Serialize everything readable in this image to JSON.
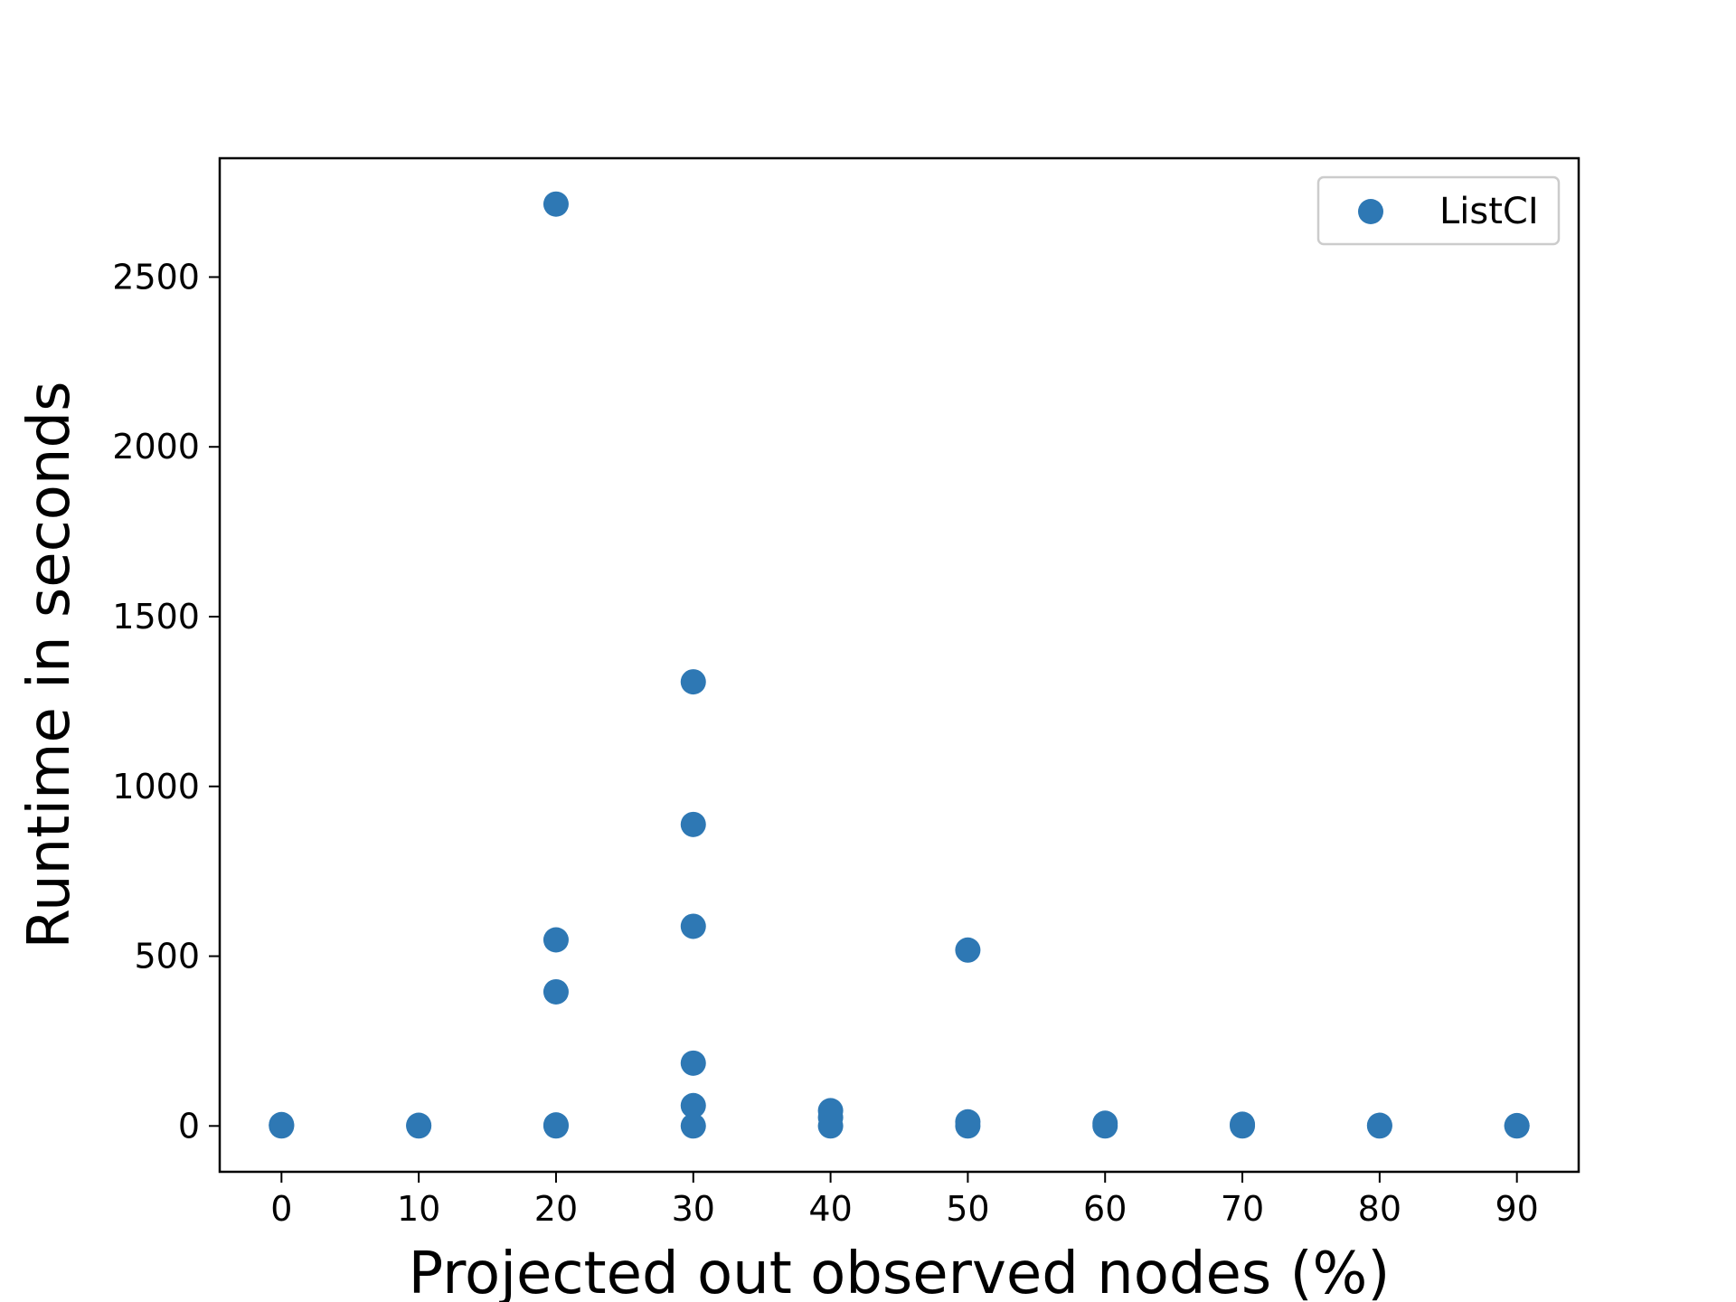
{
  "chart_data": {
    "type": "scatter",
    "title": "",
    "xlabel": "Projected out observed nodes (%)",
    "ylabel": "Runtime in seconds",
    "xlim": [
      -4.5,
      94.5
    ],
    "ylim": [
      -135,
      2850
    ],
    "xticks": [
      0,
      10,
      20,
      30,
      40,
      50,
      60,
      70,
      80,
      90
    ],
    "yticks": [
      0,
      500,
      1000,
      1500,
      2000,
      2500
    ],
    "grid": false,
    "legend_position": "top-right",
    "series": [
      {
        "name": "ListCI",
        "color": "#2e78b4",
        "points": [
          {
            "x": 0,
            "y": 0
          },
          {
            "x": 0,
            "y": 2
          },
          {
            "x": 0,
            "y": 4
          },
          {
            "x": 10,
            "y": 0
          },
          {
            "x": 10,
            "y": 2
          },
          {
            "x": 20,
            "y": 2715
          },
          {
            "x": 20,
            "y": 548
          },
          {
            "x": 20,
            "y": 395
          },
          {
            "x": 20,
            "y": 0
          },
          {
            "x": 20,
            "y": 3
          },
          {
            "x": 30,
            "y": 1308
          },
          {
            "x": 30,
            "y": 888
          },
          {
            "x": 30,
            "y": 588
          },
          {
            "x": 30,
            "y": 185
          },
          {
            "x": 30,
            "y": 60
          },
          {
            "x": 30,
            "y": 0
          },
          {
            "x": 40,
            "y": 45
          },
          {
            "x": 40,
            "y": 25
          },
          {
            "x": 40,
            "y": 0
          },
          {
            "x": 50,
            "y": 518
          },
          {
            "x": 50,
            "y": 12
          },
          {
            "x": 50,
            "y": 0
          },
          {
            "x": 60,
            "y": 8
          },
          {
            "x": 60,
            "y": 0
          },
          {
            "x": 70,
            "y": 5
          },
          {
            "x": 70,
            "y": 0
          },
          {
            "x": 80,
            "y": 2
          },
          {
            "x": 80,
            "y": 0
          },
          {
            "x": 90,
            "y": 1
          },
          {
            "x": 90,
            "y": 0
          }
        ]
      }
    ]
  }
}
